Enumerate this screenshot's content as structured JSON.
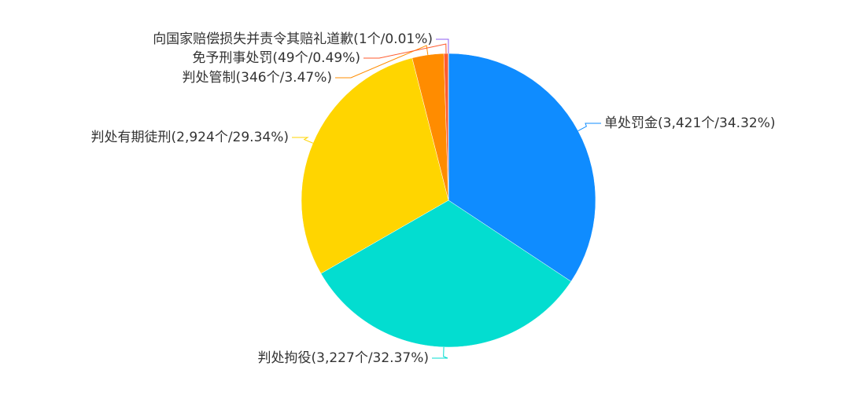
{
  "chart_data": {
    "type": "pie",
    "values": [
      3421,
      3227,
      2924,
      346,
      49,
      1
    ],
    "value_labels": [
      "单处罚金(3,421个/34.32%)",
      "判处拘役(3,227个/32.37%)",
      "判处有期徒刑(2,924个/29.34%)",
      "判处管制(346个/3.47%)",
      "免予刑事处罚(49个/0.49%)",
      "向国家赔偿损失并责令其赔礼道歉(1个/0.01%)"
    ],
    "colors": [
      "#0f8cff",
      "#03ddd0",
      "#ffd500",
      "#ff8c00",
      "#ff5b2e",
      "#8e5cf0"
    ]
  }
}
